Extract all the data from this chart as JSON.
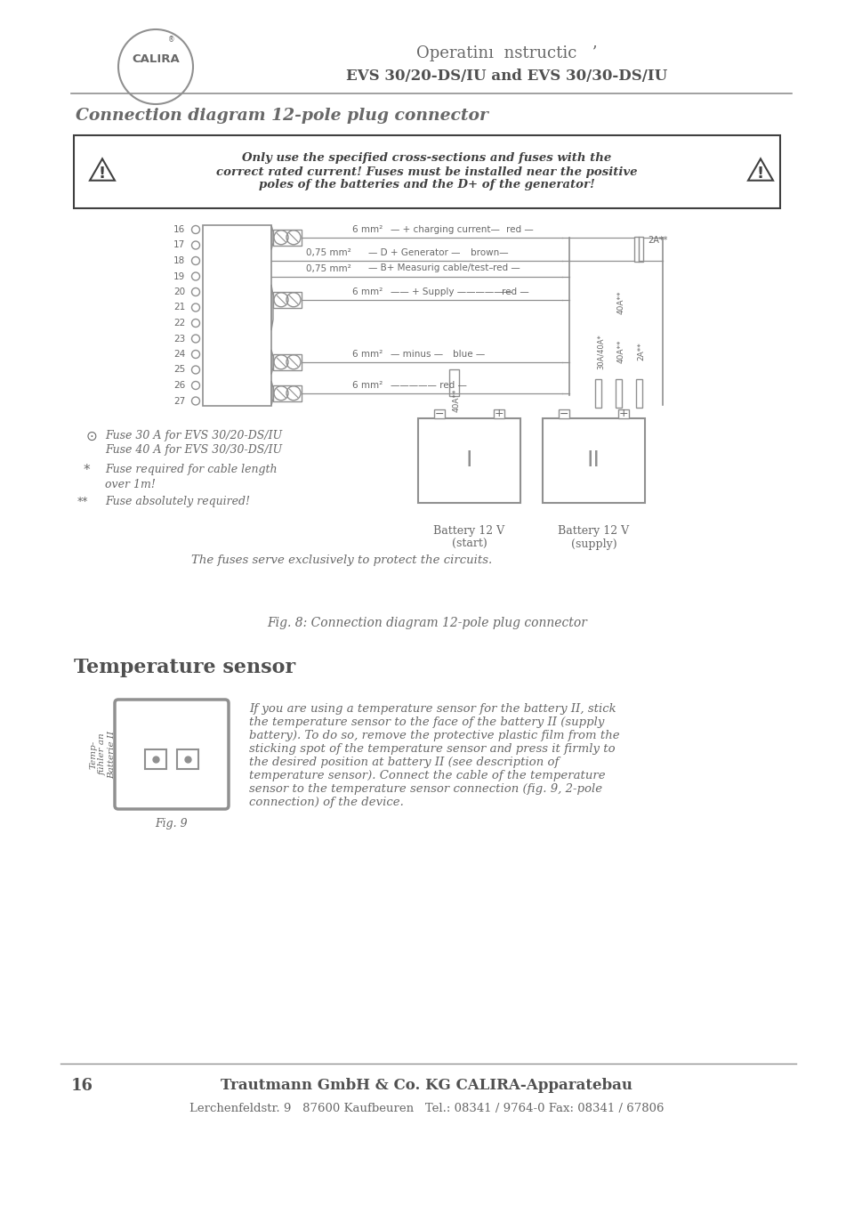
{
  "bg_color": "#ffffff",
  "title_line1": "Operatinı  nstructic   ’",
  "title_line2": "EVS 30/20-DS/IU and EVS 30/30-DS/IU",
  "section_title": "Connection diagram 12-pole plug connector",
  "warning_text": "Only use the specified cross-sections and fuses with the\ncorrect rated current! Fuses must be installed near the positive\npoles of the batteries and the D+ of the generator!",
  "fuse_note1_symbol": "⊙",
  "fuse_note1_line1": "Fuse 30 A for EVS 30/20-DS/IU",
  "fuse_note1_line2": "Fuse 40 A for EVS 30/30-DS/IU",
  "fuse_note2_text": "Fuse required for cable length\nover 1m!",
  "fuse_note3_text": "Fuse absolutely required!",
  "battery1_label": "Battery 12 V\n(start)",
  "battery2_label": "Battery 12 V\n(supply)",
  "fig_caption": "Fig. 8: Connection diagram 12-pole plug connector",
  "temp_section_title": "Temperature sensor",
  "temp_rotated_label": "Temp-\nfühler an\nBatterie II",
  "temp_text": "If you are using a temperature sensor for the battery II, stick\nthe temperature sensor to the face of the battery II (supply\nbattery). To do so, remove the protective plastic film from the\nsticking spot of the temperature sensor and press it firmly to\nthe desired position at battery II (see description of\ntemperature sensor). Connect the cable of the temperature\nsensor to the temperature sensor connection (fig. 9, 2-pole\nconnection) of the device.",
  "fig9_label": "Fig. 9",
  "footer_page": "16",
  "footer_main": "Trautmann GmbH & Co. KG CALIRA-Apparatebau",
  "footer_address": "Lerchenfeldstr. 9   87600 Kaufbeuren   Tel.: 08341 / 9764-0 Fax: 08341 / 67806",
  "tc": "#686868",
  "dc": "#505050",
  "lc": "#909090",
  "warn_color": "#404040"
}
